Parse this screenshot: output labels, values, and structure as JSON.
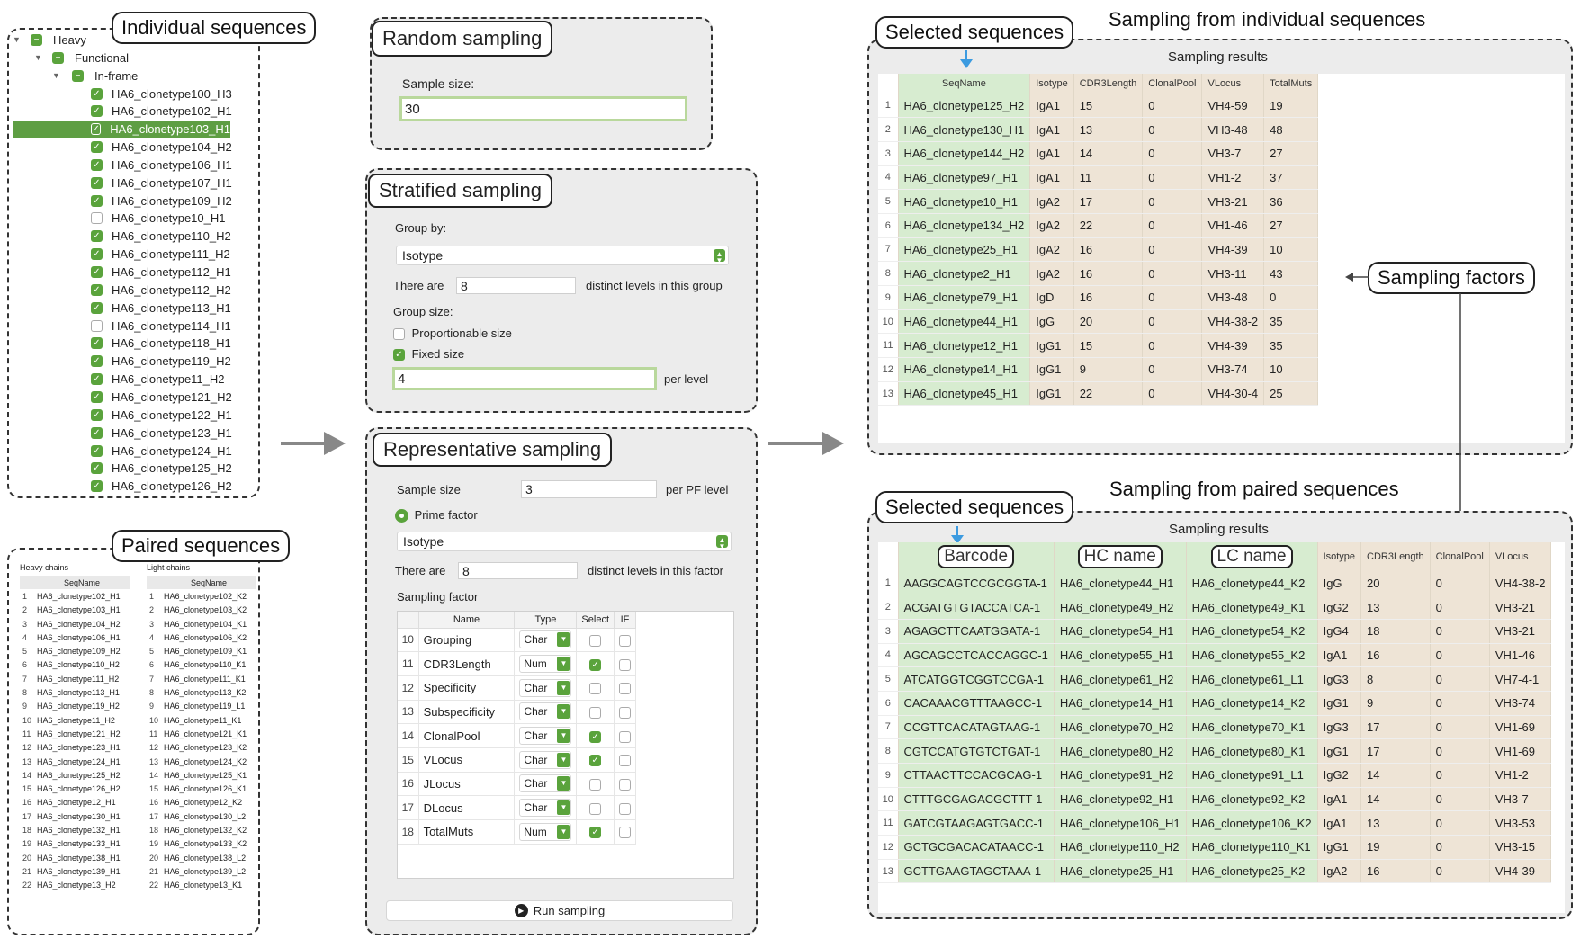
{
  "tree": {
    "callout": "Individual sequences",
    "heavy": "Heavy",
    "functional": "Functional",
    "inframe": "In-frame",
    "items": [
      {
        "name": "HA6_clonetype100_H3",
        "checked": true,
        "selected": false
      },
      {
        "name": "HA6_clonetype102_H1",
        "checked": true,
        "selected": false
      },
      {
        "name": "HA6_clonetype103_H1",
        "checked": true,
        "selected": true
      },
      {
        "name": "HA6_clonetype104_H2",
        "checked": true,
        "selected": false
      },
      {
        "name": "HA6_clonetype106_H1",
        "checked": true,
        "selected": false
      },
      {
        "name": "HA6_clonetype107_H1",
        "checked": true,
        "selected": false
      },
      {
        "name": "HA6_clonetype109_H2",
        "checked": true,
        "selected": false
      },
      {
        "name": "HA6_clonetype10_H1",
        "checked": false,
        "selected": false
      },
      {
        "name": "HA6_clonetype110_H2",
        "checked": true,
        "selected": false
      },
      {
        "name": "HA6_clonetype111_H2",
        "checked": true,
        "selected": false
      },
      {
        "name": "HA6_clonetype112_H1",
        "checked": true,
        "selected": false
      },
      {
        "name": "HA6_clonetype112_H2",
        "checked": true,
        "selected": false
      },
      {
        "name": "HA6_clonetype113_H1",
        "checked": true,
        "selected": false
      },
      {
        "name": "HA6_clonetype114_H1",
        "checked": false,
        "selected": false
      },
      {
        "name": "HA6_clonetype118_H1",
        "checked": true,
        "selected": false
      },
      {
        "name": "HA6_clonetype119_H2",
        "checked": true,
        "selected": false
      },
      {
        "name": "HA6_clonetype11_H2",
        "checked": true,
        "selected": false
      },
      {
        "name": "HA6_clonetype121_H2",
        "checked": true,
        "selected": false
      },
      {
        "name": "HA6_clonetype122_H1",
        "checked": true,
        "selected": false
      },
      {
        "name": "HA6_clonetype123_H1",
        "checked": true,
        "selected": false
      },
      {
        "name": "HA6_clonetype124_H1",
        "checked": true,
        "selected": false
      },
      {
        "name": "HA6_clonetype125_H2",
        "checked": true,
        "selected": false
      },
      {
        "name": "HA6_clonetype126_H2",
        "checked": true,
        "selected": false
      }
    ]
  },
  "paired": {
    "callout": "Paired sequences",
    "heavy_title": "Heavy chains",
    "light_title": "Light chains",
    "col": "SeqName",
    "heavy": [
      "HA6_clonetype102_H1",
      "HA6_clonetype103_H1",
      "HA6_clonetype104_H2",
      "HA6_clonetype106_H1",
      "HA6_clonetype109_H2",
      "HA6_clonetype110_H2",
      "HA6_clonetype111_H2",
      "HA6_clonetype113_H1",
      "HA6_clonetype119_H2",
      "HA6_clonetype11_H2",
      "HA6_clonetype121_H2",
      "HA6_clonetype123_H1",
      "HA6_clonetype124_H1",
      "HA6_clonetype125_H2",
      "HA6_clonetype126_H2",
      "HA6_clonetype12_H1",
      "HA6_clonetype130_H1",
      "HA6_clonetype132_H1",
      "HA6_clonetype133_H1",
      "HA6_clonetype138_H1",
      "HA6_clonetype139_H1",
      "HA6_clonetype13_H2"
    ],
    "light": [
      "HA6_clonetype102_K2",
      "HA6_clonetype103_K2",
      "HA6_clonetype104_K1",
      "HA6_clonetype106_K2",
      "HA6_clonetype109_K1",
      "HA6_clonetype110_K1",
      "HA6_clonetype111_K1",
      "HA6_clonetype113_K2",
      "HA6_clonetype119_L1",
      "HA6_clonetype11_K1",
      "HA6_clonetype121_K1",
      "HA6_clonetype123_K2",
      "HA6_clonetype124_K2",
      "HA6_clonetype125_K1",
      "HA6_clonetype126_K1",
      "HA6_clonetype12_K2",
      "HA6_clonetype130_L2",
      "HA6_clonetype132_K2",
      "HA6_clonetype133_K2",
      "HA6_clonetype138_L2",
      "HA6_clonetype139_L2",
      "HA6_clonetype13_K1"
    ]
  },
  "random": {
    "title": "Random sampling",
    "label": "Sample size:",
    "value": "30"
  },
  "stratified": {
    "title": "Stratified sampling",
    "group_by": "Group by:",
    "group_value": "Isotype",
    "there_are": "There are",
    "levels": "8",
    "levels_suffix": "distinct levels in this group",
    "group_size": "Group size:",
    "proportionable": "Proportionable size",
    "fixed": "Fixed size",
    "per_value": "4",
    "per_level": "per level"
  },
  "representative": {
    "title": "Representative sampling",
    "sample_size": "Sample size",
    "sample_value": "3",
    "per_pf": "per PF level",
    "prime_factor": "Prime factor",
    "factor_value": "Isotype",
    "there_are": "There are",
    "levels": "8",
    "levels_suffix": "distinct levels in this factor",
    "sampling_factor": "Sampling factor",
    "cols": [
      "Name",
      "Type",
      "Select",
      "IF"
    ],
    "rows": [
      {
        "n": "10",
        "name": "Grouping",
        "type": "Char",
        "select": false
      },
      {
        "n": "11",
        "name": "CDR3Length",
        "type": "Num",
        "select": true
      },
      {
        "n": "12",
        "name": "Specificity",
        "type": "Char",
        "select": false
      },
      {
        "n": "13",
        "name": "Subspecificity",
        "type": "Char",
        "select": false
      },
      {
        "n": "14",
        "name": "ClonalPool",
        "type": "Char",
        "select": true
      },
      {
        "n": "15",
        "name": "VLocus",
        "type": "Char",
        "select": true
      },
      {
        "n": "16",
        "name": "JLocus",
        "type": "Char",
        "select": false
      },
      {
        "n": "17",
        "name": "DLocus",
        "type": "Char",
        "select": false
      },
      {
        "n": "18",
        "name": "TotalMuts",
        "type": "Num",
        "select": true
      }
    ],
    "run": "Run sampling"
  },
  "individual_results": {
    "heading": "Sampling from individual sequences",
    "callout": "Selected sequences",
    "title": "Sampling results",
    "cols": [
      "SeqName",
      "Isotype",
      "CDR3Length",
      "ClonalPool",
      "VLocus",
      "TotalMuts"
    ],
    "rows": [
      [
        "HA6_clonetype125_H2",
        "IgA1",
        "15",
        "0",
        "VH4-59",
        "19"
      ],
      [
        "HA6_clonetype130_H1",
        "IgA1",
        "13",
        "0",
        "VH3-48",
        "48"
      ],
      [
        "HA6_clonetype144_H2",
        "IgA1",
        "14",
        "0",
        "VH3-7",
        "27"
      ],
      [
        "HA6_clonetype97_H1",
        "IgA1",
        "11",
        "0",
        "VH1-2",
        "37"
      ],
      [
        "HA6_clonetype10_H1",
        "IgA2",
        "17",
        "0",
        "VH3-21",
        "36"
      ],
      [
        "HA6_clonetype134_H2",
        "IgA2",
        "22",
        "0",
        "VH1-46",
        "27"
      ],
      [
        "HA6_clonetype25_H1",
        "IgA2",
        "16",
        "0",
        "VH4-39",
        "10"
      ],
      [
        "HA6_clonetype2_H1",
        "IgA2",
        "16",
        "0",
        "VH3-11",
        "43"
      ],
      [
        "HA6_clonetype79_H1",
        "IgD",
        "16",
        "0",
        "VH3-48",
        "0"
      ],
      [
        "HA6_clonetype44_H1",
        "IgG",
        "20",
        "0",
        "VH4-38-2",
        "35"
      ],
      [
        "HA6_clonetype12_H1",
        "IgG1",
        "15",
        "0",
        "VH4-39",
        "35"
      ],
      [
        "HA6_clonetype14_H1",
        "IgG1",
        "9",
        "0",
        "VH3-74",
        "10"
      ],
      [
        "HA6_clonetype45_H1",
        "IgG1",
        "22",
        "0",
        "VH4-30-4",
        "25"
      ]
    ]
  },
  "sampling_factors_callout": "Sampling factors",
  "paired_results": {
    "heading": "Sampling from paired sequences",
    "callout": "Selected sequences",
    "title": "Sampling results",
    "cols": [
      "Barcode",
      "HC name",
      "LC name",
      "Isotype",
      "CDR3Length",
      "ClonalPool",
      "VLocus"
    ],
    "rows": [
      [
        "AAGGCAGTCCGCGGTA-1",
        "HA6_clonetype44_H1",
        "HA6_clonetype44_K2",
        "IgG",
        "20",
        "0",
        "VH4-38-2"
      ],
      [
        "ACGATGTGTACCATCA-1",
        "HA6_clonetype49_H2",
        "HA6_clonetype49_K1",
        "IgG2",
        "13",
        "0",
        "VH3-21"
      ],
      [
        "AGAGCTTCAATGGATA-1",
        "HA6_clonetype54_H1",
        "HA6_clonetype54_K2",
        "IgG4",
        "18",
        "0",
        "VH3-21"
      ],
      [
        "AGCAGCCTCACCAGGC-1",
        "HA6_clonetype55_H1",
        "HA6_clonetype55_K2",
        "IgA1",
        "16",
        "0",
        "VH1-46"
      ],
      [
        "ATCATGGTCGGTCCGA-1",
        "HA6_clonetype61_H2",
        "HA6_clonetype61_L1",
        "IgG3",
        "8",
        "0",
        "VH7-4-1"
      ],
      [
        "CACAAACGTTTAAGCC-1",
        "HA6_clonetype14_H1",
        "HA6_clonetype14_K2",
        "IgG1",
        "9",
        "0",
        "VH3-74"
      ],
      [
        "CCGTTCACATAGTAAG-1",
        "HA6_clonetype70_H2",
        "HA6_clonetype70_K1",
        "IgG3",
        "17",
        "0",
        "VH1-69"
      ],
      [
        "CGTCCATGTGTCTGAT-1",
        "HA6_clonetype80_H2",
        "HA6_clonetype80_K1",
        "IgG1",
        "17",
        "0",
        "VH1-69"
      ],
      [
        "CTTAACTTCCACGCAG-1",
        "HA6_clonetype91_H2",
        "HA6_clonetype91_L1",
        "IgG2",
        "14",
        "0",
        "VH1-2"
      ],
      [
        "CTTTGCGAGACGCTTT-1",
        "HA6_clonetype92_H1",
        "HA6_clonetype92_K2",
        "IgA1",
        "14",
        "0",
        "VH3-7"
      ],
      [
        "GATCGTAAGAGTGACC-1",
        "HA6_clonetype106_H1",
        "HA6_clonetype106_K2",
        "IgA1",
        "13",
        "0",
        "VH3-53"
      ],
      [
        "GCTGCGACACATAACC-1",
        "HA6_clonetype110_H2",
        "HA6_clonetype110_K1",
        "IgG1",
        "19",
        "0",
        "VH3-15"
      ],
      [
        "GCTTGAAGTAGCTAAA-1",
        "HA6_clonetype25_H1",
        "HA6_clonetype25_K2",
        "IgA2",
        "16",
        "0",
        "VH4-39"
      ]
    ]
  }
}
